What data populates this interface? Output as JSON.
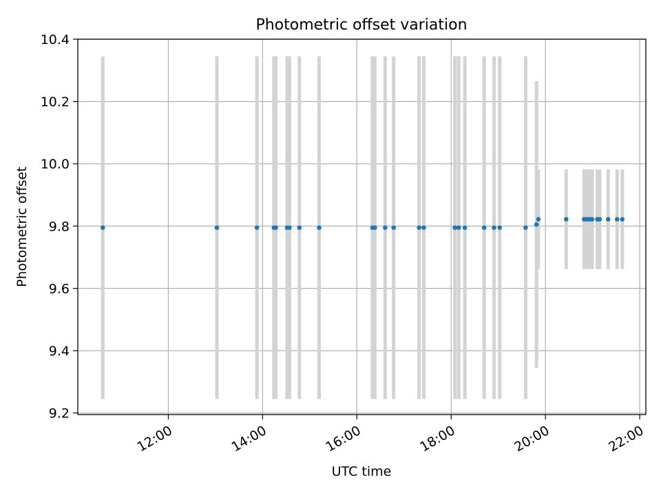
{
  "chart_data": {
    "type": "scatter",
    "title": "Photometric offset variation",
    "xlabel": "UTC time",
    "ylabel": "Photometric offset",
    "x_unit": "hours UTC",
    "xlim": [
      10.08,
      22.13
    ],
    "ylim": [
      9.195,
      10.4
    ],
    "x_ticks": [
      {
        "value": 12,
        "label": "12:00"
      },
      {
        "value": 14,
        "label": "14:00"
      },
      {
        "value": 16,
        "label": "16:00"
      },
      {
        "value": 18,
        "label": "18:00"
      },
      {
        "value": 20,
        "label": "20:00"
      },
      {
        "value": 22,
        "label": "22:00"
      }
    ],
    "y_ticks": [
      {
        "value": 9.2,
        "label": "9.2"
      },
      {
        "value": 9.4,
        "label": "9.4"
      },
      {
        "value": 9.6,
        "label": "9.6"
      },
      {
        "value": 9.8,
        "label": "9.8"
      },
      {
        "value": 10.0,
        "label": "10.0"
      },
      {
        "value": 10.2,
        "label": "10.2"
      },
      {
        "value": 10.4,
        "label": "10.4"
      }
    ],
    "grid": true,
    "legend": "none",
    "tick_label_rotation_deg": 30,
    "colors": {
      "points": "#1f77b4",
      "error_bars": "#d3d3d3",
      "grid": "#b0b0b0"
    },
    "series": [
      {
        "points": [
          {
            "x": 10.61,
            "y": 9.795,
            "err": 0.55
          },
          {
            "x": 13.03,
            "y": 9.795,
            "err": 0.55
          },
          {
            "x": 13.88,
            "y": 9.795,
            "err": 0.55
          },
          {
            "x": 14.24,
            "y": 9.795,
            "err": 0.55
          },
          {
            "x": 14.28,
            "y": 9.795,
            "err": 0.55
          },
          {
            "x": 14.52,
            "y": 9.795,
            "err": 0.55
          },
          {
            "x": 14.57,
            "y": 9.795,
            "err": 0.55
          },
          {
            "x": 14.78,
            "y": 9.795,
            "err": 0.55
          },
          {
            "x": 15.2,
            "y": 9.795,
            "err": 0.55
          },
          {
            "x": 16.33,
            "y": 9.795,
            "err": 0.55
          },
          {
            "x": 16.38,
            "y": 9.795,
            "err": 0.55
          },
          {
            "x": 16.6,
            "y": 9.795,
            "err": 0.55
          },
          {
            "x": 16.78,
            "y": 9.795,
            "err": 0.55
          },
          {
            "x": 17.32,
            "y": 9.795,
            "err": 0.55
          },
          {
            "x": 17.42,
            "y": 9.795,
            "err": 0.55
          },
          {
            "x": 18.08,
            "y": 9.795,
            "err": 0.55
          },
          {
            "x": 18.16,
            "y": 9.795,
            "err": 0.55
          },
          {
            "x": 18.29,
            "y": 9.795,
            "err": 0.55
          },
          {
            "x": 18.7,
            "y": 9.795,
            "err": 0.55
          },
          {
            "x": 18.91,
            "y": 9.795,
            "err": 0.55
          },
          {
            "x": 19.03,
            "y": 9.795,
            "err": 0.55
          },
          {
            "x": 19.58,
            "y": 9.795,
            "err": 0.55
          },
          {
            "x": 19.81,
            "y": 9.805,
            "err": 0.46
          },
          {
            "x": 19.85,
            "y": 9.822,
            "err": 0.16
          },
          {
            "x": 20.44,
            "y": 9.822,
            "err": 0.16
          },
          {
            "x": 20.82,
            "y": 9.822,
            "err": 0.16
          },
          {
            "x": 20.87,
            "y": 9.822,
            "err": 0.16
          },
          {
            "x": 20.91,
            "y": 9.822,
            "err": 0.16
          },
          {
            "x": 20.95,
            "y": 9.822,
            "err": 0.16
          },
          {
            "x": 20.99,
            "y": 9.822,
            "err": 0.16
          },
          {
            "x": 21.1,
            "y": 9.822,
            "err": 0.16
          },
          {
            "x": 21.15,
            "y": 9.822,
            "err": 0.16
          },
          {
            "x": 21.33,
            "y": 9.822,
            "err": 0.16
          },
          {
            "x": 21.52,
            "y": 9.822,
            "err": 0.16
          },
          {
            "x": 21.63,
            "y": 9.822,
            "err": 0.16
          }
        ]
      }
    ]
  }
}
